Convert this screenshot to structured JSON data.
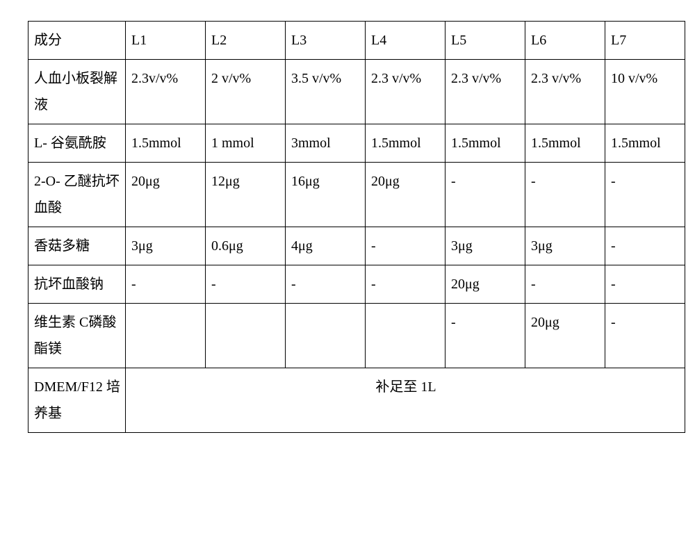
{
  "table": {
    "header": [
      "成分",
      "L1",
      "L2",
      "L3",
      "L4",
      "L5",
      "L6",
      "L7"
    ],
    "rows": [
      {
        "label": "人血小板裂解液",
        "c": [
          "2.3v/v%",
          "2 v/v%",
          "3.5 v/v%",
          "2.3 v/v%",
          "2.3 v/v%",
          "2.3 v/v%",
          "10 v/v%"
        ]
      },
      {
        "label": "L- 谷氨酰胺",
        "c": [
          "1.5mmol",
          "1 mmol",
          "3mmol",
          "1.5mmol",
          "1.5mmol",
          "1.5mmol",
          "1.5mmol"
        ]
      },
      {
        "label": "2-O- 乙醚抗坏血酸",
        "c": [
          "20μg",
          "12μg",
          "16μg",
          "20μg",
          "-",
          "-",
          "-"
        ]
      },
      {
        "label": "香菇多糖",
        "c": [
          "3μg",
          "0.6μg",
          "4μg",
          "-",
          "3μg",
          "3μg",
          "-"
        ]
      },
      {
        "label": "抗坏血酸钠",
        "c": [
          "-",
          "-",
          "-",
          "-",
          "20μg",
          "-",
          "-"
        ]
      },
      {
        "label": "维生素 C磷酸酯镁",
        "c": [
          "",
          "",
          "",
          "",
          "-",
          "20μg",
          "-"
        ]
      }
    ],
    "footer_label": "DMEM/F12 培养基",
    "footer_value": "补足至 1L"
  }
}
